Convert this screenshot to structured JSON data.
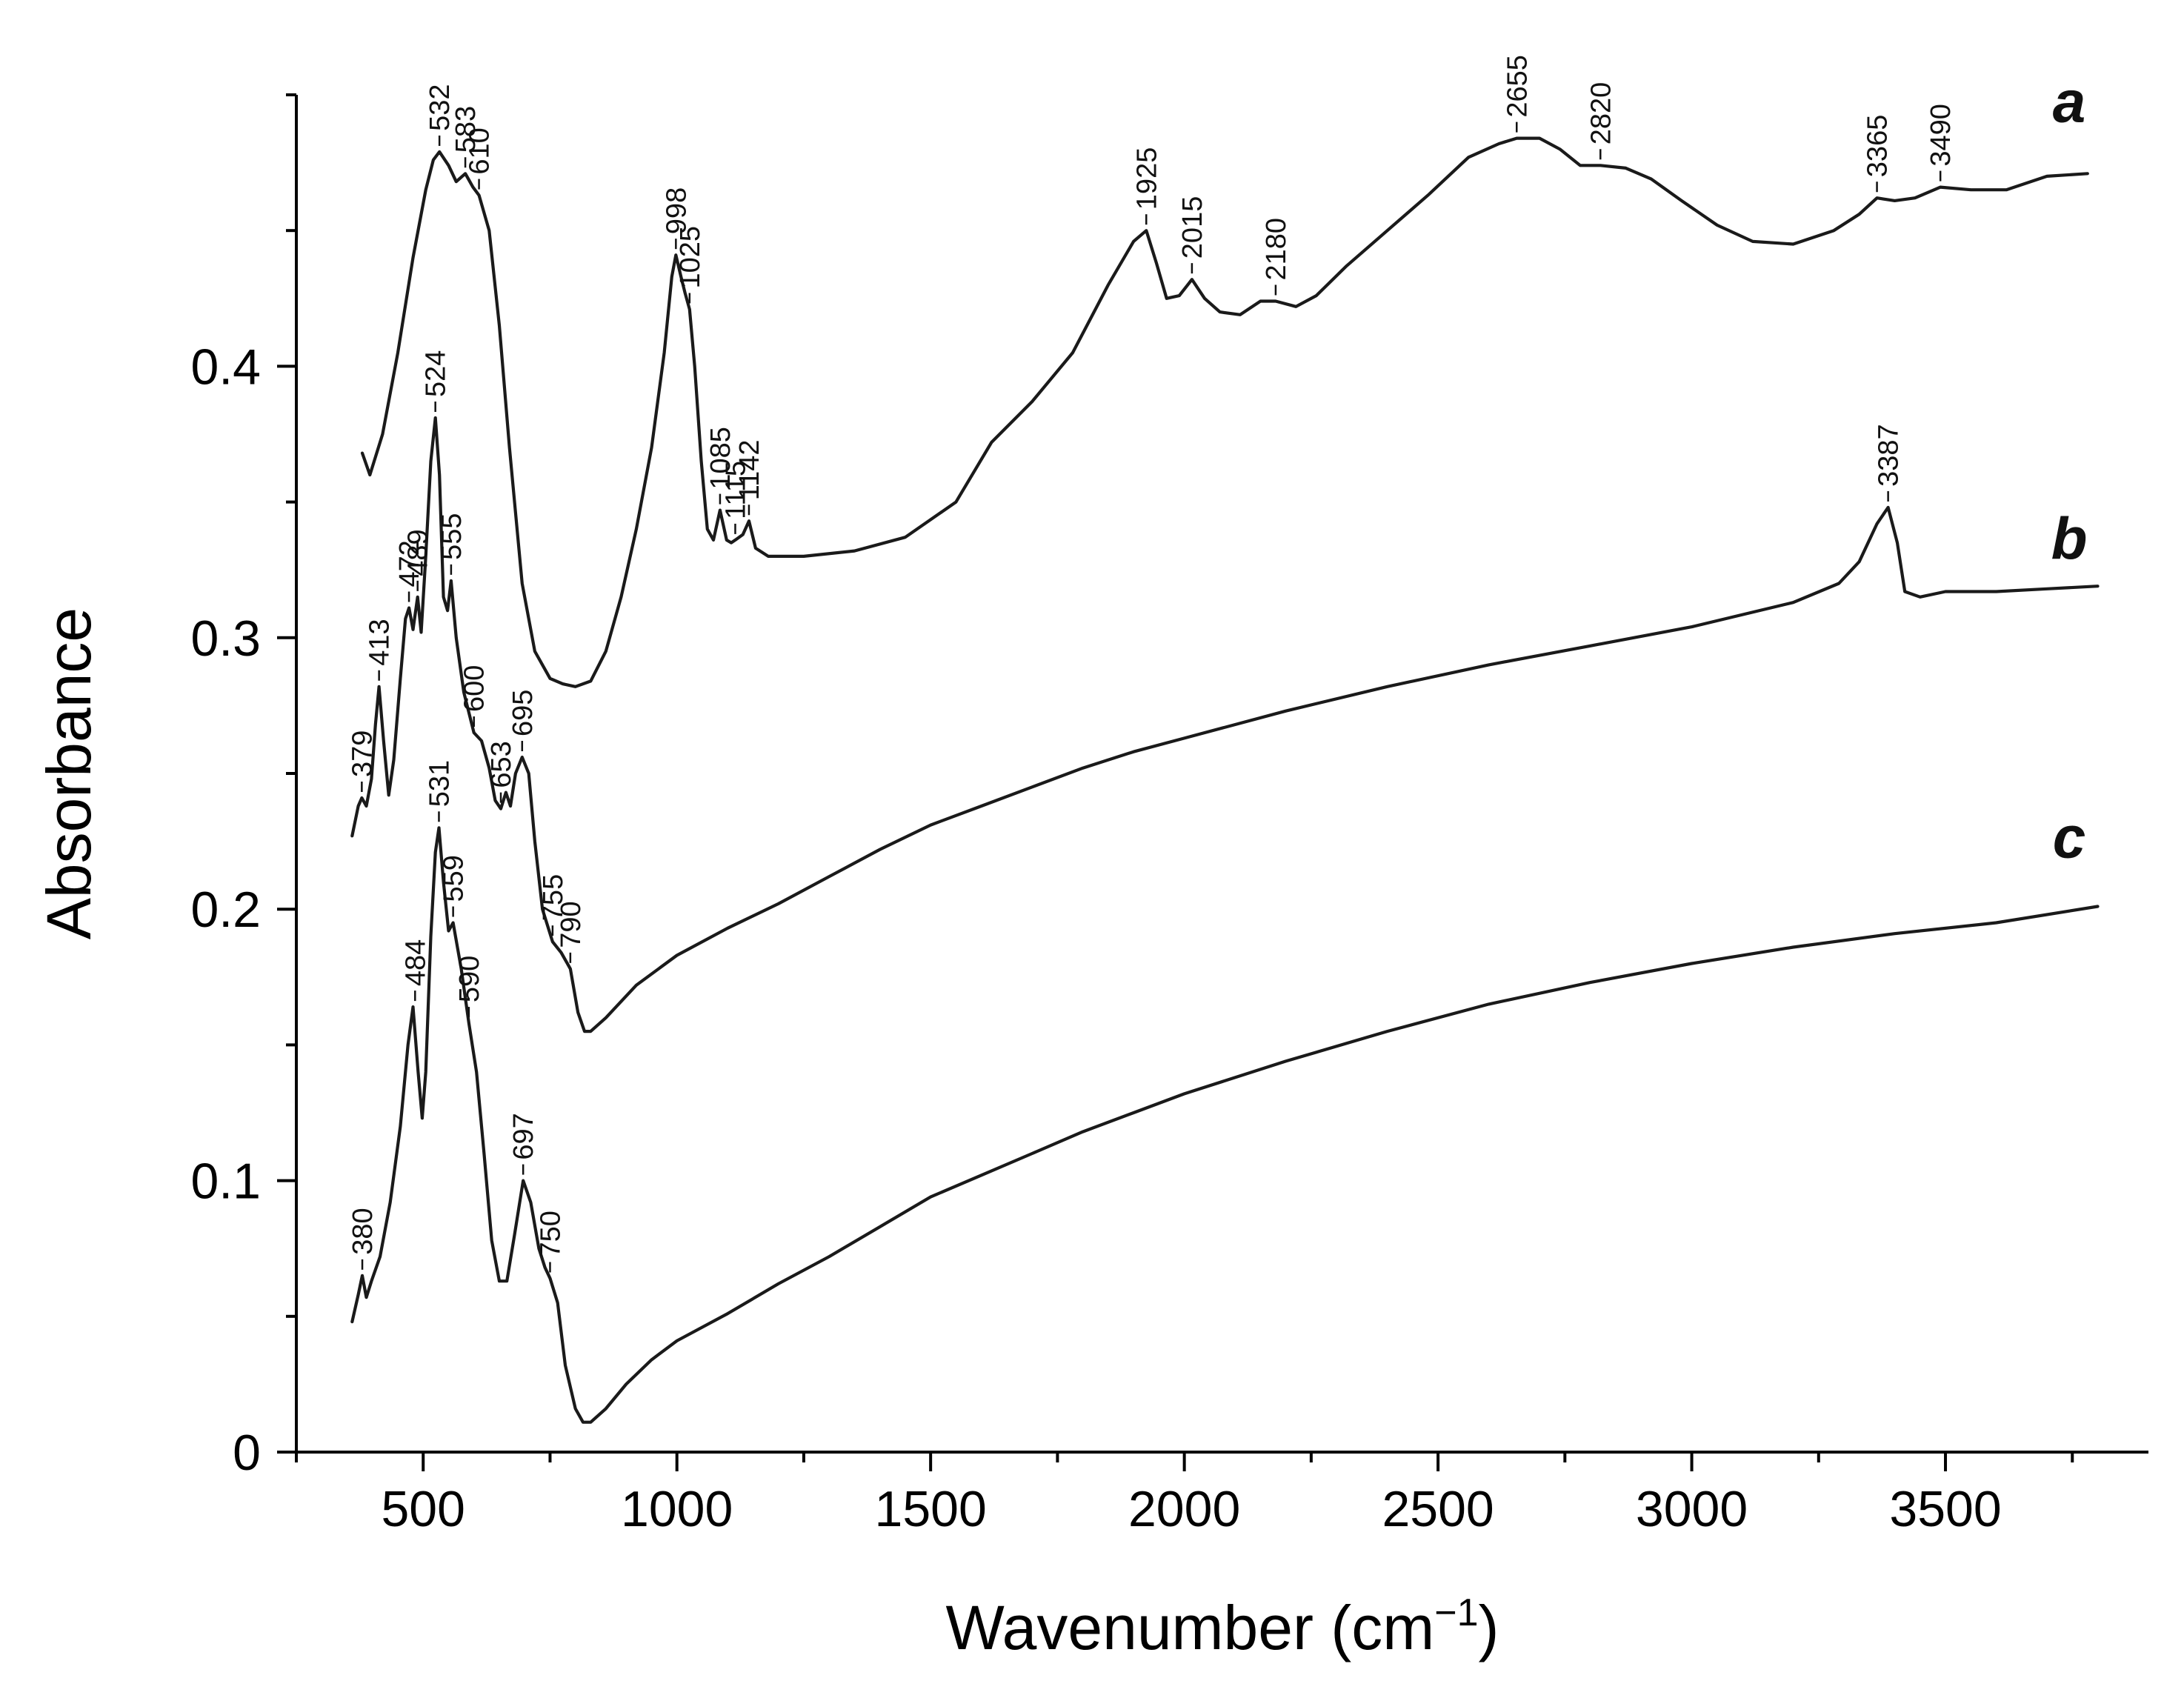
{
  "chart_data": {
    "type": "line",
    "title": "",
    "xlabel": "Wavenumber (cm",
    "xlabel_sup": "−1",
    "xlabel_close": ")",
    "ylabel": "Absorbance",
    "xlim": [
      250,
      3900
    ],
    "ylim": [
      0,
      0.5
    ],
    "x_ticks": [
      500,
      1000,
      1500,
      2000,
      2500,
      3000,
      3500
    ],
    "x_tick_labels": [
      "500",
      "1000",
      "1500",
      "2000",
      "2500",
      "3000",
      "3500"
    ],
    "x_minor_step": 250,
    "y_ticks": [
      0,
      0.1,
      0.2,
      0.3,
      0.4
    ],
    "y_tick_labels": [
      "0",
      "0.1",
      "0.2",
      "0.3",
      "0.4"
    ],
    "y_minor_step": 0.05,
    "grid": false,
    "series": [
      {
        "name": "a",
        "points": [
          [
            380,
            0.368
          ],
          [
            395,
            0.36
          ],
          [
            420,
            0.375
          ],
          [
            450,
            0.405
          ],
          [
            480,
            0.44
          ],
          [
            505,
            0.465
          ],
          [
            520,
            0.476
          ],
          [
            532,
            0.479
          ],
          [
            550,
            0.474
          ],
          [
            565,
            0.468
          ],
          [
            583,
            0.471
          ],
          [
            598,
            0.466
          ],
          [
            610,
            0.463
          ],
          [
            630,
            0.45
          ],
          [
            650,
            0.415
          ],
          [
            670,
            0.37
          ],
          [
            695,
            0.32
          ],
          [
            720,
            0.295
          ],
          [
            750,
            0.285
          ],
          [
            775,
            0.283
          ],
          [
            800,
            0.282
          ],
          [
            830,
            0.284
          ],
          [
            860,
            0.295
          ],
          [
            890,
            0.315
          ],
          [
            920,
            0.34
          ],
          [
            950,
            0.37
          ],
          [
            975,
            0.405
          ],
          [
            990,
            0.433
          ],
          [
            998,
            0.441
          ],
          [
            1008,
            0.433
          ],
          [
            1016,
            0.427
          ],
          [
            1025,
            0.421
          ],
          [
            1035,
            0.4
          ],
          [
            1048,
            0.365
          ],
          [
            1060,
            0.34
          ],
          [
            1072,
            0.336
          ],
          [
            1085,
            0.347
          ],
          [
            1098,
            0.336
          ],
          [
            1107,
            0.335
          ],
          [
            1115,
            0.336
          ],
          [
            1130,
            0.338
          ],
          [
            1142,
            0.343
          ],
          [
            1155,
            0.333
          ],
          [
            1180,
            0.33
          ],
          [
            1250,
            0.33
          ],
          [
            1350,
            0.332
          ],
          [
            1450,
            0.337
          ],
          [
            1550,
            0.35
          ],
          [
            1620,
            0.372
          ],
          [
            1700,
            0.387
          ],
          [
            1780,
            0.405
          ],
          [
            1850,
            0.43
          ],
          [
            1900,
            0.446
          ],
          [
            1925,
            0.45
          ],
          [
            1945,
            0.438
          ],
          [
            1965,
            0.425
          ],
          [
            1990,
            0.426
          ],
          [
            2015,
            0.432
          ],
          [
            2040,
            0.425
          ],
          [
            2070,
            0.42
          ],
          [
            2110,
            0.419
          ],
          [
            2150,
            0.424
          ],
          [
            2180,
            0.424
          ],
          [
            2220,
            0.422
          ],
          [
            2260,
            0.426
          ],
          [
            2320,
            0.437
          ],
          [
            2400,
            0.45
          ],
          [
            2480,
            0.463
          ],
          [
            2560,
            0.477
          ],
          [
            2620,
            0.482
          ],
          [
            2655,
            0.484
          ],
          [
            2700,
            0.484
          ],
          [
            2740,
            0.48
          ],
          [
            2780,
            0.474
          ],
          [
            2820,
            0.474
          ],
          [
            2870,
            0.473
          ],
          [
            2920,
            0.469
          ],
          [
            2980,
            0.461
          ],
          [
            3050,
            0.452
          ],
          [
            3120,
            0.446
          ],
          [
            3200,
            0.445
          ],
          [
            3280,
            0.45
          ],
          [
            3330,
            0.456
          ],
          [
            3365,
            0.462
          ],
          [
            3400,
            0.461
          ],
          [
            3440,
            0.462
          ],
          [
            3490,
            0.466
          ],
          [
            3550,
            0.465
          ],
          [
            3620,
            0.465
          ],
          [
            3700,
            0.47
          ],
          [
            3780,
            0.471
          ]
        ],
        "annotations": [
          {
            "x": 532,
            "y": 0.479,
            "label": "532"
          },
          {
            "x": 583,
            "y": 0.471,
            "label": "583"
          },
          {
            "x": 610,
            "y": 0.463,
            "label": "610"
          },
          {
            "x": 998,
            "y": 0.441,
            "label": "998"
          },
          {
            "x": 1025,
            "y": 0.421,
            "label": "1025"
          },
          {
            "x": 1085,
            "y": 0.347,
            "label": "1085"
          },
          {
            "x": 1115,
            "y": 0.336,
            "label": "1115"
          },
          {
            "x": 1142,
            "y": 0.343,
            "label": "1142"
          },
          {
            "x": 1925,
            "y": 0.45,
            "label": "1925"
          },
          {
            "x": 2015,
            "y": 0.432,
            "label": "2015"
          },
          {
            "x": 2180,
            "y": 0.424,
            "label": "2180"
          },
          {
            "x": 2655,
            "y": 0.484,
            "label": "2655"
          },
          {
            "x": 2820,
            "y": 0.474,
            "label": "2820"
          },
          {
            "x": 3365,
            "y": 0.462,
            "label": "3365"
          },
          {
            "x": 3490,
            "y": 0.466,
            "label": "3490"
          }
        ]
      },
      {
        "name": "b",
        "points": [
          [
            360,
            0.227
          ],
          [
            372,
            0.238
          ],
          [
            379,
            0.241
          ],
          [
            388,
            0.238
          ],
          [
            398,
            0.248
          ],
          [
            406,
            0.268
          ],
          [
            413,
            0.282
          ],
          [
            422,
            0.262
          ],
          [
            432,
            0.242
          ],
          [
            442,
            0.255
          ],
          [
            455,
            0.285
          ],
          [
            465,
            0.307
          ],
          [
            472,
            0.311
          ],
          [
            480,
            0.303
          ],
          [
            489,
            0.315
          ],
          [
            496,
            0.302
          ],
          [
            505,
            0.33
          ],
          [
            515,
            0.365
          ],
          [
            524,
            0.381
          ],
          [
            532,
            0.36
          ],
          [
            540,
            0.315
          ],
          [
            548,
            0.31
          ],
          [
            555,
            0.321
          ],
          [
            565,
            0.3
          ],
          [
            580,
            0.28
          ],
          [
            600,
            0.265
          ],
          [
            615,
            0.262
          ],
          [
            630,
            0.252
          ],
          [
            642,
            0.24
          ],
          [
            653,
            0.237
          ],
          [
            663,
            0.243
          ],
          [
            672,
            0.238
          ],
          [
            682,
            0.25
          ],
          [
            695,
            0.256
          ],
          [
            708,
            0.25
          ],
          [
            720,
            0.225
          ],
          [
            735,
            0.2
          ],
          [
            755,
            0.188
          ],
          [
            772,
            0.184
          ],
          [
            790,
            0.178
          ],
          [
            805,
            0.162
          ],
          [
            818,
            0.155
          ],
          [
            830,
            0.155
          ],
          [
            860,
            0.16
          ],
          [
            920,
            0.172
          ],
          [
            1000,
            0.183
          ],
          [
            1100,
            0.193
          ],
          [
            1200,
            0.202
          ],
          [
            1300,
            0.212
          ],
          [
            1400,
            0.222
          ],
          [
            1500,
            0.231
          ],
          [
            1600,
            0.238
          ],
          [
            1700,
            0.245
          ],
          [
            1800,
            0.252
          ],
          [
            1900,
            0.258
          ],
          [
            2000,
            0.263
          ],
          [
            2200,
            0.273
          ],
          [
            2400,
            0.282
          ],
          [
            2600,
            0.29
          ],
          [
            2800,
            0.297
          ],
          [
            3000,
            0.304
          ],
          [
            3200,
            0.313
          ],
          [
            3290,
            0.32
          ],
          [
            3330,
            0.328
          ],
          [
            3365,
            0.342
          ],
          [
            3387,
            0.348
          ],
          [
            3405,
            0.335
          ],
          [
            3420,
            0.317
          ],
          [
            3450,
            0.315
          ],
          [
            3500,
            0.317
          ],
          [
            3600,
            0.317
          ],
          [
            3700,
            0.318
          ],
          [
            3800,
            0.319
          ]
        ],
        "annotations": [
          {
            "x": 379,
            "y": 0.241,
            "label": "379"
          },
          {
            "x": 413,
            "y": 0.282,
            "label": "413"
          },
          {
            "x": 472,
            "y": 0.311,
            "label": "472"
          },
          {
            "x": 489,
            "y": 0.315,
            "label": "489"
          },
          {
            "x": 524,
            "y": 0.381,
            "label": "524"
          },
          {
            "x": 555,
            "y": 0.321,
            "label": "555"
          },
          {
            "x": 600,
            "y": 0.265,
            "label": "600"
          },
          {
            "x": 653,
            "y": 0.237,
            "label": "653"
          },
          {
            "x": 695,
            "y": 0.256,
            "label": "695"
          },
          {
            "x": 755,
            "y": 0.188,
            "label": "755"
          },
          {
            "x": 790,
            "y": 0.178,
            "label": "790"
          },
          {
            "x": 3387,
            "y": 0.348,
            "label": "3387"
          }
        ]
      },
      {
        "name": "c",
        "points": [
          [
            360,
            0.048
          ],
          [
            372,
            0.058
          ],
          [
            380,
            0.065
          ],
          [
            388,
            0.057
          ],
          [
            398,
            0.063
          ],
          [
            415,
            0.072
          ],
          [
            435,
            0.092
          ],
          [
            455,
            0.12
          ],
          [
            470,
            0.15
          ],
          [
            480,
            0.164
          ],
          [
            490,
            0.14
          ],
          [
            498,
            0.123
          ],
          [
            505,
            0.14
          ],
          [
            515,
            0.19
          ],
          [
            524,
            0.221
          ],
          [
            531,
            0.23
          ],
          [
            540,
            0.21
          ],
          [
            550,
            0.192
          ],
          [
            559,
            0.195
          ],
          [
            575,
            0.178
          ],
          [
            590,
            0.158
          ],
          [
            605,
            0.14
          ],
          [
            620,
            0.11
          ],
          [
            635,
            0.078
          ],
          [
            650,
            0.063
          ],
          [
            665,
            0.063
          ],
          [
            680,
            0.08
          ],
          [
            697,
            0.1
          ],
          [
            712,
            0.092
          ],
          [
            728,
            0.075
          ],
          [
            740,
            0.068
          ],
          [
            750,
            0.064
          ],
          [
            765,
            0.055
          ],
          [
            780,
            0.032
          ],
          [
            800,
            0.016
          ],
          [
            815,
            0.011
          ],
          [
            830,
            0.011
          ],
          [
            860,
            0.016
          ],
          [
            900,
            0.025
          ],
          [
            950,
            0.034
          ],
          [
            1000,
            0.041
          ],
          [
            1100,
            0.051
          ],
          [
            1200,
            0.062
          ],
          [
            1300,
            0.072
          ],
          [
            1400,
            0.083
          ],
          [
            1500,
            0.094
          ],
          [
            1600,
            0.102
          ],
          [
            1700,
            0.11
          ],
          [
            1800,
            0.118
          ],
          [
            1900,
            0.125
          ],
          [
            2000,
            0.132
          ],
          [
            2200,
            0.144
          ],
          [
            2400,
            0.155
          ],
          [
            2600,
            0.165
          ],
          [
            2800,
            0.173
          ],
          [
            3000,
            0.18
          ],
          [
            3200,
            0.186
          ],
          [
            3400,
            0.191
          ],
          [
            3600,
            0.195
          ],
          [
            3800,
            0.201
          ]
        ],
        "annotations": [
          {
            "x": 380,
            "y": 0.065,
            "label": "380"
          },
          {
            "x": 484,
            "y": 0.164,
            "label": "484"
          },
          {
            "x": 531,
            "y": 0.23,
            "label": "531"
          },
          {
            "x": 559,
            "y": 0.195,
            "label": "559"
          },
          {
            "x": 590,
            "y": 0.158,
            "label": "590"
          },
          {
            "x": 697,
            "y": 0.1,
            "label": "697"
          },
          {
            "x": 750,
            "y": 0.064,
            "label": "750"
          }
        ]
      }
    ],
    "curve_labels": [
      {
        "name": "a",
        "x": 3700,
        "y": 0.49
      },
      {
        "name": "b",
        "x": 3700,
        "y": 0.329
      },
      {
        "name": "c",
        "x": 3700,
        "y": 0.219
      }
    ]
  }
}
